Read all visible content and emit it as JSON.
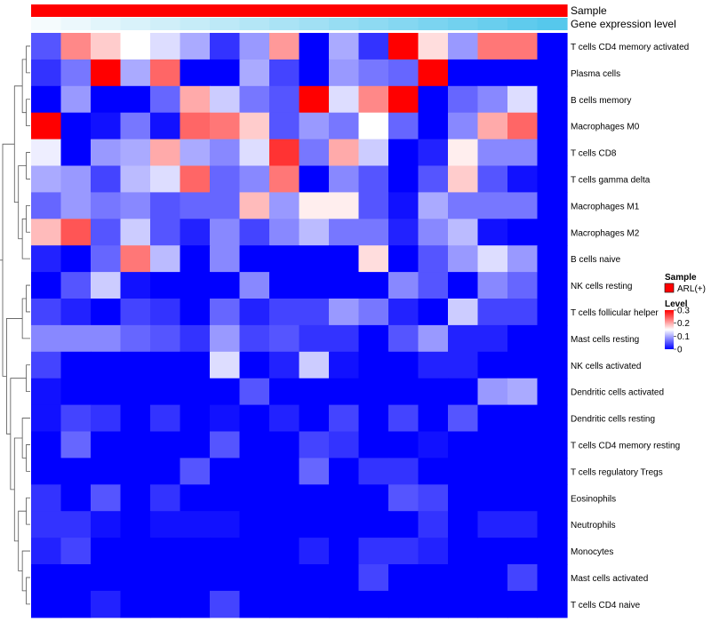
{
  "chart_data": {
    "type": "heatmap",
    "annotations": [
      {
        "name": "Sample",
        "kind": "categorical",
        "values": [
          "ARL(+)"
        ],
        "colors": [
          "#ff0000"
        ]
      },
      {
        "name": "Gene expression level",
        "kind": "gradient",
        "colors": [
          "#f5fbfd",
          "#56c8ec"
        ]
      }
    ],
    "rows": [
      "T cells CD4 memory activated",
      "Plasma cells",
      "B cells memory",
      "Macrophages M0",
      "T cells CD8",
      "T cells gamma delta",
      "Macrophages M1",
      "Macrophages M2",
      "B cells naive",
      "NK cells resting",
      "T cells follicular helper",
      "Mast cells resting",
      "NK cells activated",
      "Dendritic cells activated",
      "Dendritic cells resting",
      "T cells CD4 memory resting",
      "T cells regulatory  Tregs",
      "Eosinophils",
      "Neutrophils",
      "Monocytes",
      "Mast cells activated",
      "T cells CD4 naive"
    ],
    "n_columns": 18,
    "values": [
      [
        0.05,
        0.22,
        0.18,
        0.15,
        0.13,
        0.1,
        0.03,
        0.09,
        0.21,
        0.0,
        0.1,
        0.03,
        0.3,
        0.17,
        0.09,
        0.23,
        0.23,
        0.0
      ],
      [
        0.03,
        0.07,
        0.3,
        0.1,
        0.24,
        0.0,
        0.0,
        0.1,
        0.04,
        0.0,
        0.09,
        0.07,
        0.06,
        0.3,
        0.0,
        0.0,
        0.0,
        0.0
      ],
      [
        0.0,
        0.09,
        0.0,
        0.0,
        0.06,
        0.2,
        0.12,
        0.07,
        0.05,
        0.3,
        0.13,
        0.22,
        0.3,
        0.0,
        0.06,
        0.08,
        0.13,
        0.0
      ],
      [
        0.3,
        0.0,
        0.01,
        0.07,
        0.01,
        0.24,
        0.23,
        0.18,
        0.05,
        0.09,
        0.07,
        0.15,
        0.06,
        0.0,
        0.08,
        0.2,
        0.24,
        0.0
      ],
      [
        0.14,
        0.0,
        0.09,
        0.1,
        0.2,
        0.1,
        0.08,
        0.13,
        0.27,
        0.07,
        0.2,
        0.12,
        0.0,
        0.02,
        0.16,
        0.08,
        0.08,
        0.0
      ],
      [
        0.1,
        0.09,
        0.04,
        0.11,
        0.13,
        0.24,
        0.06,
        0.08,
        0.23,
        0.0,
        0.08,
        0.05,
        0.0,
        0.05,
        0.18,
        0.05,
        0.01,
        0.0
      ],
      [
        0.06,
        0.09,
        0.07,
        0.08,
        0.05,
        0.06,
        0.06,
        0.19,
        0.09,
        0.16,
        0.16,
        0.05,
        0.01,
        0.1,
        0.07,
        0.07,
        0.07,
        0.0
      ],
      [
        0.19,
        0.25,
        0.05,
        0.12,
        0.05,
        0.02,
        0.08,
        0.04,
        0.08,
        0.11,
        0.07,
        0.07,
        0.02,
        0.08,
        0.11,
        0.01,
        0.0,
        0.0
      ],
      [
        0.02,
        0.0,
        0.06,
        0.23,
        0.11,
        0.0,
        0.08,
        0.0,
        0.0,
        0.0,
        0.0,
        0.17,
        0.0,
        0.05,
        0.09,
        0.13,
        0.09,
        0.0
      ],
      [
        0.0,
        0.05,
        0.12,
        0.01,
        0.0,
        0.0,
        0.0,
        0.08,
        0.0,
        0.0,
        0.0,
        0.0,
        0.08,
        0.05,
        0.0,
        0.08,
        0.06,
        0.0
      ],
      [
        0.04,
        0.02,
        0.0,
        0.04,
        0.03,
        0.0,
        0.06,
        0.02,
        0.04,
        0.04,
        0.09,
        0.07,
        0.02,
        0.0,
        0.12,
        0.04,
        0.04,
        0.0
      ],
      [
        0.08,
        0.08,
        0.08,
        0.06,
        0.05,
        0.03,
        0.09,
        0.04,
        0.05,
        0.03,
        0.03,
        0.0,
        0.05,
        0.09,
        0.02,
        0.02,
        0.0,
        0.0
      ],
      [
        0.04,
        0.0,
        0.0,
        0.0,
        0.0,
        0.0,
        0.13,
        0.0,
        0.02,
        0.12,
        0.01,
        0.0,
        0.0,
        0.02,
        0.02,
        0.0,
        0.0,
        0.0
      ],
      [
        0.01,
        0.0,
        0.0,
        0.0,
        0.0,
        0.0,
        0.0,
        0.05,
        0.0,
        0.0,
        0.0,
        0.0,
        0.0,
        0.0,
        0.0,
        0.09,
        0.1,
        0.0
      ],
      [
        0.01,
        0.04,
        0.03,
        0.0,
        0.03,
        0.0,
        0.01,
        0.0,
        0.02,
        0.0,
        0.04,
        0.0,
        0.04,
        0.0,
        0.05,
        0.0,
        0.0,
        0.0
      ],
      [
        0.0,
        0.06,
        0.0,
        0.0,
        0.0,
        0.0,
        0.05,
        0.0,
        0.0,
        0.04,
        0.03,
        0.0,
        0.0,
        0.01,
        0.0,
        0.0,
        0.0,
        0.0
      ],
      [
        0.0,
        0.0,
        0.0,
        0.0,
        0.0,
        0.05,
        0.0,
        0.0,
        0.0,
        0.06,
        0.0,
        0.03,
        0.03,
        0.0,
        0.0,
        0.0,
        0.0,
        0.0
      ],
      [
        0.03,
        0.0,
        0.05,
        0.0,
        0.03,
        0.0,
        0.0,
        0.0,
        0.0,
        0.0,
        0.0,
        0.0,
        0.05,
        0.04,
        0.0,
        0.0,
        0.0,
        0.0
      ],
      [
        0.03,
        0.03,
        0.01,
        0.0,
        0.01,
        0.01,
        0.01,
        0.0,
        0.0,
        0.0,
        0.0,
        0.0,
        0.0,
        0.03,
        0.0,
        0.02,
        0.02,
        0.0
      ],
      [
        0.02,
        0.04,
        0.0,
        0.0,
        0.0,
        0.0,
        0.0,
        0.0,
        0.0,
        0.02,
        0.0,
        0.03,
        0.03,
        0.02,
        0.0,
        0.0,
        0.0,
        0.0
      ],
      [
        0.0,
        0.0,
        0.0,
        0.0,
        0.0,
        0.0,
        0.0,
        0.0,
        0.0,
        0.0,
        0.0,
        0.04,
        0.0,
        0.0,
        0.0,
        0.0,
        0.04,
        0.0
      ],
      [
        0.0,
        0.0,
        0.02,
        0.0,
        0.0,
        0.0,
        0.04,
        0.0,
        0.0,
        0.0,
        0.0,
        0.0,
        0.0,
        0.0,
        0.0,
        0.0,
        0.0,
        0.0
      ]
    ],
    "color_scale": {
      "min": 0,
      "max": 0.3,
      "low": "#0000ff",
      "mid": "#ffffff",
      "high": "#ff0000"
    },
    "legend": {
      "placement": "right",
      "sample_title": "Sample",
      "sample_entry": "ARL(+)",
      "level_title": "Level",
      "level_ticks": [
        "0.3",
        "0.2",
        "0.1",
        "0"
      ]
    },
    "row_dendrogram": "left"
  }
}
